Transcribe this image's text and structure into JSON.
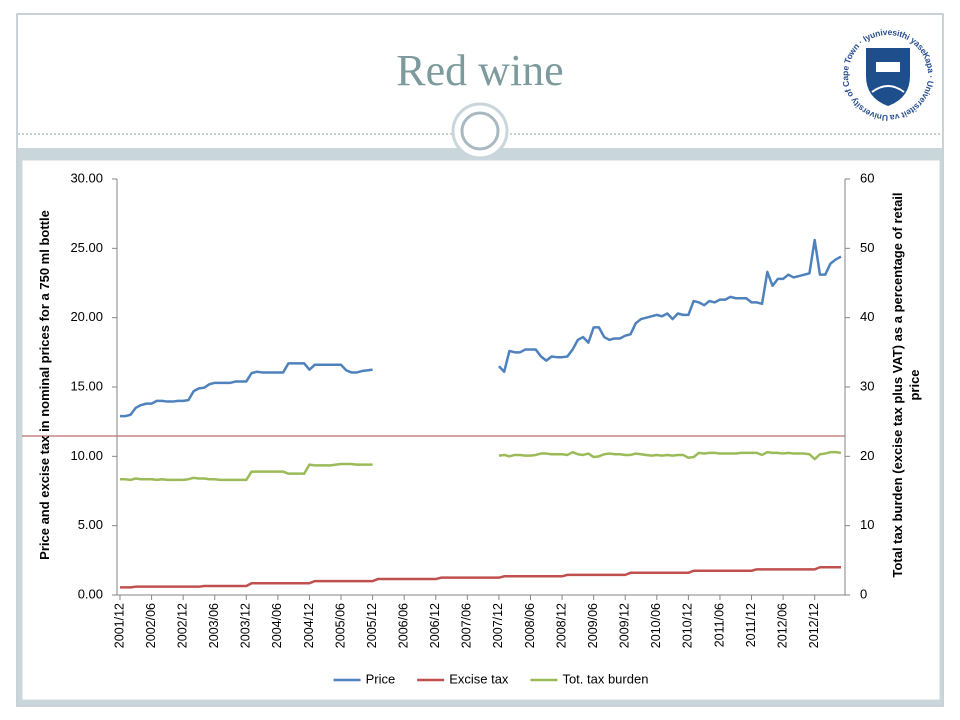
{
  "title": "Red wine",
  "logo": {
    "text": "University of Cape Town · Iyunivesithi yaseKapa · Universiteit van Kaapstad"
  },
  "chart_data": {
    "type": "line",
    "ylabel": "Price and excise tax in nominal prices for a 750 ml bottle",
    "y2label": "Total tax burden (excise tax plus VAT) as a percentage of retail price",
    "categories": [
      "2001/12",
      null,
      null,
      null,
      null,
      null,
      "2002/06",
      null,
      null,
      null,
      null,
      null,
      "2002/12",
      null,
      null,
      null,
      null,
      null,
      "2003/06",
      null,
      null,
      null,
      null,
      null,
      "2003/12",
      null,
      null,
      null,
      null,
      null,
      "2004/06",
      null,
      null,
      null,
      null,
      null,
      "2004/12",
      null,
      null,
      null,
      null,
      null,
      "2005/06",
      null,
      null,
      null,
      null,
      null,
      "2005/12",
      null,
      null,
      null,
      null,
      null,
      "2006/06",
      null,
      null,
      null,
      null,
      null,
      "2006/12",
      null,
      null,
      null,
      null,
      null,
      "2007/06",
      null,
      null,
      null,
      null,
      null,
      "2007/12",
      null,
      null,
      null,
      null,
      null,
      "2008/06",
      null,
      null,
      null,
      null,
      null,
      "2008/12",
      null,
      null,
      null,
      null,
      null,
      "2009/06",
      null,
      null,
      null,
      null,
      null,
      "2009/12",
      null,
      null,
      null,
      null,
      null,
      "2010/06",
      null,
      null,
      null,
      null,
      null,
      "2010/12",
      null,
      null,
      null,
      null,
      null,
      "2011/06",
      null,
      null,
      null,
      null,
      null,
      "2011/12",
      null,
      null,
      null,
      null,
      null,
      "2012/06",
      null,
      null,
      null,
      null,
      null,
      "2012/12",
      null,
      null,
      null,
      null,
      null
    ],
    "series": [
      {
        "name": "Price",
        "color": "#4f81bd",
        "values": [
          12.9,
          12.9,
          13.0,
          13.5,
          13.7,
          13.8,
          13.8,
          14.0,
          14.0,
          13.95,
          13.95,
          14.0,
          14.0,
          14.05,
          14.7,
          14.9,
          14.95,
          15.2,
          15.3,
          15.3,
          15.3,
          15.3,
          15.4,
          15.4,
          15.4,
          16.0,
          16.1,
          16.05,
          16.05,
          16.05,
          16.05,
          16.05,
          16.7,
          16.7,
          16.7,
          16.7,
          16.25,
          16.6,
          16.6,
          16.6,
          16.6,
          16.6,
          16.6,
          16.2,
          16.05,
          16.05,
          16.15,
          16.2,
          16.25,
          null,
          null,
          null,
          null,
          null,
          null,
          null,
          null,
          null,
          null,
          null,
          null,
          null,
          null,
          null,
          null,
          null,
          null,
          null,
          null,
          null,
          null,
          null,
          16.5,
          16.1,
          17.6,
          17.5,
          17.5,
          17.7,
          17.7,
          17.7,
          17.2,
          16.9,
          17.2,
          17.15,
          17.15,
          17.2,
          17.7,
          18.4,
          18.6,
          18.2,
          19.3,
          19.3,
          18.6,
          18.4,
          18.5,
          18.5,
          18.7,
          18.8,
          19.6,
          19.9,
          20.0,
          20.1,
          20.2,
          20.1,
          20.3,
          19.9,
          20.3,
          20.2,
          20.2,
          21.2,
          21.1,
          20.9,
          21.2,
          21.1,
          21.3,
          21.3,
          21.5,
          21.4,
          21.4,
          21.4,
          21.1,
          21.1,
          21.0,
          23.3,
          22.3,
          22.8,
          22.8,
          23.1,
          22.9,
          23.0,
          23.1,
          23.2,
          25.6,
          23.1,
          23.1,
          23.9,
          24.2,
          24.4
        ]
      },
      {
        "name": "Excise tax",
        "color": "#c0504d",
        "values": [
          0.55,
          0.55,
          0.55,
          0.6,
          0.6,
          0.6,
          0.6,
          0.6,
          0.6,
          0.6,
          0.6,
          0.6,
          0.6,
          0.6,
          0.6,
          0.6,
          0.65,
          0.65,
          0.65,
          0.65,
          0.65,
          0.65,
          0.65,
          0.65,
          0.65,
          0.85,
          0.85,
          0.85,
          0.85,
          0.85,
          0.85,
          0.85,
          0.85,
          0.85,
          0.85,
          0.85,
          0.85,
          1.0,
          1.0,
          1.0,
          1.0,
          1.0,
          1.0,
          1.0,
          1.0,
          1.0,
          1.0,
          1.0,
          1.0,
          1.15,
          1.15,
          1.15,
          1.15,
          1.15,
          1.15,
          1.15,
          1.15,
          1.15,
          1.15,
          1.15,
          1.15,
          1.25,
          1.25,
          1.25,
          1.25,
          1.25,
          1.25,
          1.25,
          1.25,
          1.25,
          1.25,
          1.25,
          1.25,
          1.35,
          1.35,
          1.35,
          1.35,
          1.35,
          1.35,
          1.35,
          1.35,
          1.35,
          1.35,
          1.35,
          1.35,
          1.45,
          1.45,
          1.45,
          1.45,
          1.45,
          1.45,
          1.45,
          1.45,
          1.45,
          1.45,
          1.45,
          1.45,
          1.6,
          1.6,
          1.6,
          1.6,
          1.6,
          1.6,
          1.6,
          1.6,
          1.6,
          1.6,
          1.6,
          1.6,
          1.75,
          1.75,
          1.75,
          1.75,
          1.75,
          1.75,
          1.75,
          1.75,
          1.75,
          1.75,
          1.75,
          1.75,
          1.85,
          1.85,
          1.85,
          1.85,
          1.85,
          1.85,
          1.85,
          1.85,
          1.85,
          1.85,
          1.85,
          1.85,
          2.0,
          2.0,
          2.0,
          2.0,
          2.0
        ]
      },
      {
        "name": "Tot. tax burden",
        "color": "#9bbb59",
        "axis": "y2",
        "values": [
          16.7,
          16.7,
          16.6,
          16.8,
          16.7,
          16.7,
          16.7,
          16.6,
          16.7,
          16.6,
          16.6,
          16.6,
          16.6,
          16.7,
          16.9,
          16.8,
          16.8,
          16.7,
          16.7,
          16.6,
          16.6,
          16.6,
          16.6,
          16.6,
          16.6,
          17.8,
          17.8,
          17.8,
          17.8,
          17.8,
          17.8,
          17.8,
          17.5,
          17.5,
          17.5,
          17.5,
          18.8,
          18.7,
          18.7,
          18.7,
          18.7,
          18.8,
          18.9,
          18.9,
          18.9,
          18.8,
          18.8,
          18.8,
          18.8,
          null,
          null,
          null,
          null,
          null,
          null,
          null,
          null,
          null,
          null,
          null,
          null,
          null,
          null,
          null,
          null,
          null,
          null,
          null,
          null,
          null,
          null,
          null,
          20.1,
          20.2,
          20.0,
          20.2,
          20.2,
          20.1,
          20.1,
          20.2,
          20.4,
          20.4,
          20.3,
          20.3,
          20.3,
          20.2,
          20.6,
          20.3,
          20.2,
          20.4,
          19.9,
          20.0,
          20.3,
          20.4,
          20.3,
          20.3,
          20.2,
          20.2,
          20.4,
          20.3,
          20.2,
          20.1,
          20.2,
          20.1,
          20.2,
          20.1,
          20.2,
          20.2,
          19.8,
          19.9,
          20.5,
          20.4,
          20.5,
          20.5,
          20.4,
          20.4,
          20.4,
          20.4,
          20.5,
          20.5,
          20.5,
          20.5,
          20.2,
          20.6,
          20.5,
          20.5,
          20.4,
          20.5,
          20.4,
          20.4,
          20.4,
          20.3,
          19.6,
          20.3,
          20.4,
          20.6,
          20.6,
          20.5
        ]
      }
    ],
    "ylim": [
      0,
      30
    ],
    "yticks": [
      {
        "value": 0,
        "label": "0.00"
      },
      {
        "value": 5,
        "label": "5.00"
      },
      {
        "value": 10,
        "label": "10.00"
      },
      {
        "value": 15,
        "label": "15.00"
      },
      {
        "value": 20,
        "label": "20.00"
      },
      {
        "value": 25,
        "label": "25.00"
      },
      {
        "value": 30,
        "label": "30.00"
      }
    ],
    "y2lim": [
      0,
      60
    ],
    "y2ticks": [
      0,
      10,
      20,
      30,
      40,
      50,
      60
    ],
    "grid": false,
    "legend": "bottom"
  }
}
